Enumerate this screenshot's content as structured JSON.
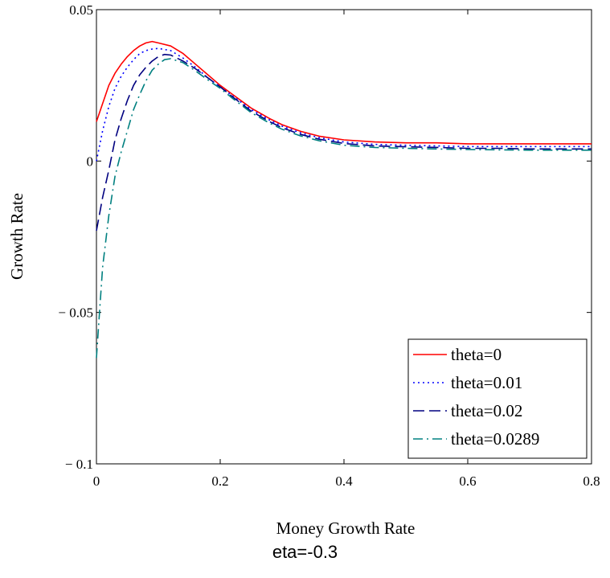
{
  "chart_data": {
    "type": "line",
    "title": "",
    "xlabel": "Money Growth Rate",
    "ylabel": "Growth Rate",
    "xlim": [
      0,
      0.8
    ],
    "ylim": [
      -0.1,
      0.05
    ],
    "xticks": [
      0,
      0.2,
      0.4,
      0.6,
      0.8
    ],
    "xtick_labels": [
      "0",
      "0.2",
      "0.4",
      "0.6",
      "0.8"
    ],
    "yticks": [
      -0.1,
      -0.05,
      0,
      0.05
    ],
    "ytick_labels": [
      "− 0.1",
      "− 0.05",
      "0",
      "0.05"
    ],
    "grid": false,
    "legend_position": "bottom-right",
    "caption": "eta=-0.3",
    "series": [
      {
        "name": "theta=0",
        "color": "#ff0000",
        "dash": "solid",
        "x": [
          0,
          0.01,
          0.02,
          0.03,
          0.04,
          0.05,
          0.06,
          0.07,
          0.08,
          0.09,
          0.1,
          0.12,
          0.14,
          0.16,
          0.18,
          0.2,
          0.22,
          0.25,
          0.28,
          0.3,
          0.33,
          0.36,
          0.4,
          0.45,
          0.5,
          0.55,
          0.6,
          0.65,
          0.7,
          0.75,
          0.8
        ],
        "y": [
          0.013,
          0.019,
          0.025,
          0.029,
          0.032,
          0.0345,
          0.0365,
          0.038,
          0.039,
          0.0395,
          0.039,
          0.038,
          0.0355,
          0.032,
          0.0285,
          0.025,
          0.022,
          0.0175,
          0.014,
          0.012,
          0.0098,
          0.0082,
          0.007,
          0.0063,
          0.006,
          0.006,
          0.0057,
          0.0057,
          0.0057,
          0.0057,
          0.0057
        ]
      },
      {
        "name": "theta=0.01",
        "color": "#0000ff",
        "dash": "dot",
        "x": [
          0,
          0.01,
          0.02,
          0.03,
          0.04,
          0.05,
          0.06,
          0.07,
          0.08,
          0.09,
          0.1,
          0.12,
          0.14,
          0.16,
          0.18,
          0.2,
          0.22,
          0.25,
          0.28,
          0.3,
          0.33,
          0.36,
          0.4,
          0.45,
          0.5,
          0.55,
          0.6,
          0.65,
          0.7,
          0.75,
          0.8
        ],
        "y": [
          0.0,
          0.01,
          0.018,
          0.024,
          0.028,
          0.031,
          0.0335,
          0.0355,
          0.0365,
          0.037,
          0.0372,
          0.0365,
          0.034,
          0.031,
          0.0275,
          0.0245,
          0.0215,
          0.017,
          0.0135,
          0.0115,
          0.0093,
          0.0077,
          0.0063,
          0.0055,
          0.0052,
          0.005,
          0.0048,
          0.0048,
          0.0048,
          0.0048,
          0.0048
        ]
      },
      {
        "name": "theta=0.02",
        "color": "#000080",
        "dash": "dash",
        "x": [
          0,
          0.01,
          0.02,
          0.03,
          0.04,
          0.05,
          0.06,
          0.07,
          0.08,
          0.09,
          0.1,
          0.11,
          0.12,
          0.14,
          0.16,
          0.18,
          0.2,
          0.22,
          0.25,
          0.28,
          0.3,
          0.33,
          0.36,
          0.4,
          0.45,
          0.5,
          0.55,
          0.6,
          0.65,
          0.7,
          0.75,
          0.8
        ],
        "y": [
          -0.023,
          -0.012,
          -0.003,
          0.007,
          0.014,
          0.02,
          0.025,
          0.0285,
          0.031,
          0.033,
          0.0345,
          0.0352,
          0.035,
          0.033,
          0.0305,
          0.0275,
          0.0245,
          0.0212,
          0.0165,
          0.013,
          0.011,
          0.0088,
          0.0072,
          0.0058,
          0.005,
          0.0047,
          0.0045,
          0.0042,
          0.0042,
          0.004,
          0.004,
          0.004
        ]
      },
      {
        "name": "theta=0.0289",
        "color": "#008080",
        "dash": "dashdot",
        "x": [
          0,
          0.005,
          0.01,
          0.02,
          0.03,
          0.04,
          0.05,
          0.06,
          0.07,
          0.08,
          0.09,
          0.1,
          0.11,
          0.12,
          0.14,
          0.16,
          0.18,
          0.2,
          0.22,
          0.25,
          0.28,
          0.3,
          0.33,
          0.36,
          0.4,
          0.45,
          0.5,
          0.55,
          0.6,
          0.65,
          0.7,
          0.75,
          0.8
        ],
        "y": [
          -0.065,
          -0.05,
          -0.035,
          -0.018,
          -0.005,
          0.003,
          0.01,
          0.017,
          0.022,
          0.0265,
          0.03,
          0.032,
          0.0335,
          0.0338,
          0.0325,
          0.0298,
          0.0268,
          0.024,
          0.0207,
          0.016,
          0.0125,
          0.0105,
          0.0083,
          0.0067,
          0.0052,
          0.0045,
          0.0042,
          0.004,
          0.0038,
          0.0037,
          0.0036,
          0.0036,
          0.0036
        ]
      }
    ]
  }
}
